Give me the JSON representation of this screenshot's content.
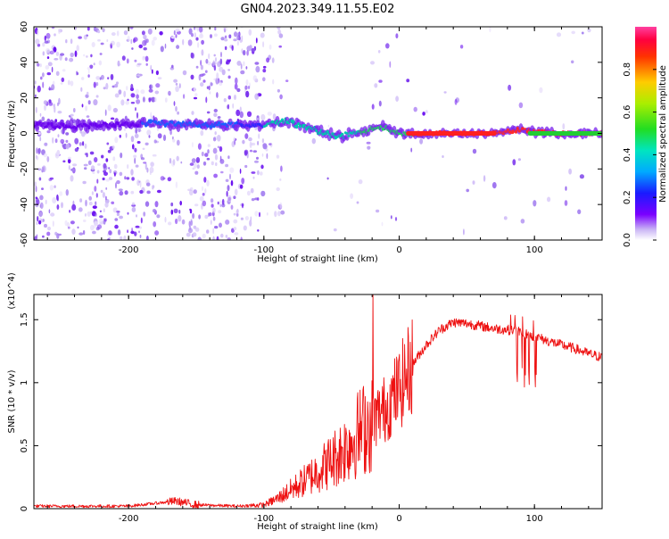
{
  "title": "GN04.2023.349.11.55.E02",
  "colors": {
    "axis": "#000000",
    "snr_line": "#ee1111",
    "scatter_faint": "#b39af0",
    "scatter_strong": "#6a00f0"
  },
  "chart_data": [
    {
      "type": "heatmap",
      "name": "spectrogram",
      "xlabel": "Height of straight line (km)",
      "ylabel": "Frequency (Hz)",
      "xlim": [
        -270,
        150
      ],
      "ylim": [
        -60,
        60
      ],
      "xticks": [
        -200,
        -100,
        0,
        100
      ],
      "yticks": [
        -60,
        -40,
        -20,
        0,
        20,
        40,
        60
      ],
      "ridge": {
        "x": [
          -270,
          -240,
          -200,
          -180,
          -160,
          -140,
          -120,
          -100,
          -85,
          -70,
          -55,
          -45,
          -35,
          -25,
          -15,
          -10,
          -5,
          0,
          20,
          50,
          70,
          80,
          90,
          100,
          120,
          150
        ],
        "y": [
          5,
          4,
          5,
          6,
          5,
          5,
          5,
          4,
          7,
          4,
          0,
          -2,
          0,
          1,
          4,
          3,
          2,
          0,
          0,
          0,
          0,
          1,
          2,
          1,
          0,
          0
        ]
      },
      "colorbar": {
        "label": "Normalized spectral amplitude",
        "range": [
          0,
          1
        ],
        "ticks": [
          0.0,
          0.2,
          0.4,
          0.6,
          0.8
        ]
      }
    },
    {
      "type": "line",
      "name": "snr",
      "xlabel": "Height of straight line (km)",
      "ylabel": "SNR (10 * v/v)",
      "exponent_label": "(x10^4)",
      "xlim": [
        -270,
        150
      ],
      "ylim": [
        0.0,
        1.7
      ],
      "xticks": [
        -200,
        -100,
        0,
        100
      ],
      "yticks": [
        0.0,
        0.5,
        1.0,
        1.5
      ],
      "series": [
        {
          "name": "SNR",
          "x": [
            -270,
            -200,
            -165,
            -150,
            -120,
            -100,
            -90,
            -80,
            -70,
            -60,
            -50,
            -40,
            -30,
            -20,
            -10,
            0,
            10,
            20,
            30,
            40,
            50,
            60,
            70,
            80,
            90,
            95,
            100,
            110,
            120,
            130,
            140,
            150
          ],
          "y": [
            0.02,
            0.02,
            0.06,
            0.03,
            0.02,
            0.03,
            0.08,
            0.15,
            0.22,
            0.3,
            0.38,
            0.48,
            0.6,
            0.7,
            0.8,
            0.95,
            1.15,
            1.3,
            1.42,
            1.48,
            1.47,
            1.45,
            1.43,
            1.42,
            1.41,
            1.38,
            1.37,
            1.33,
            1.3,
            1.27,
            1.23,
            1.2
          ]
        }
      ]
    }
  ]
}
